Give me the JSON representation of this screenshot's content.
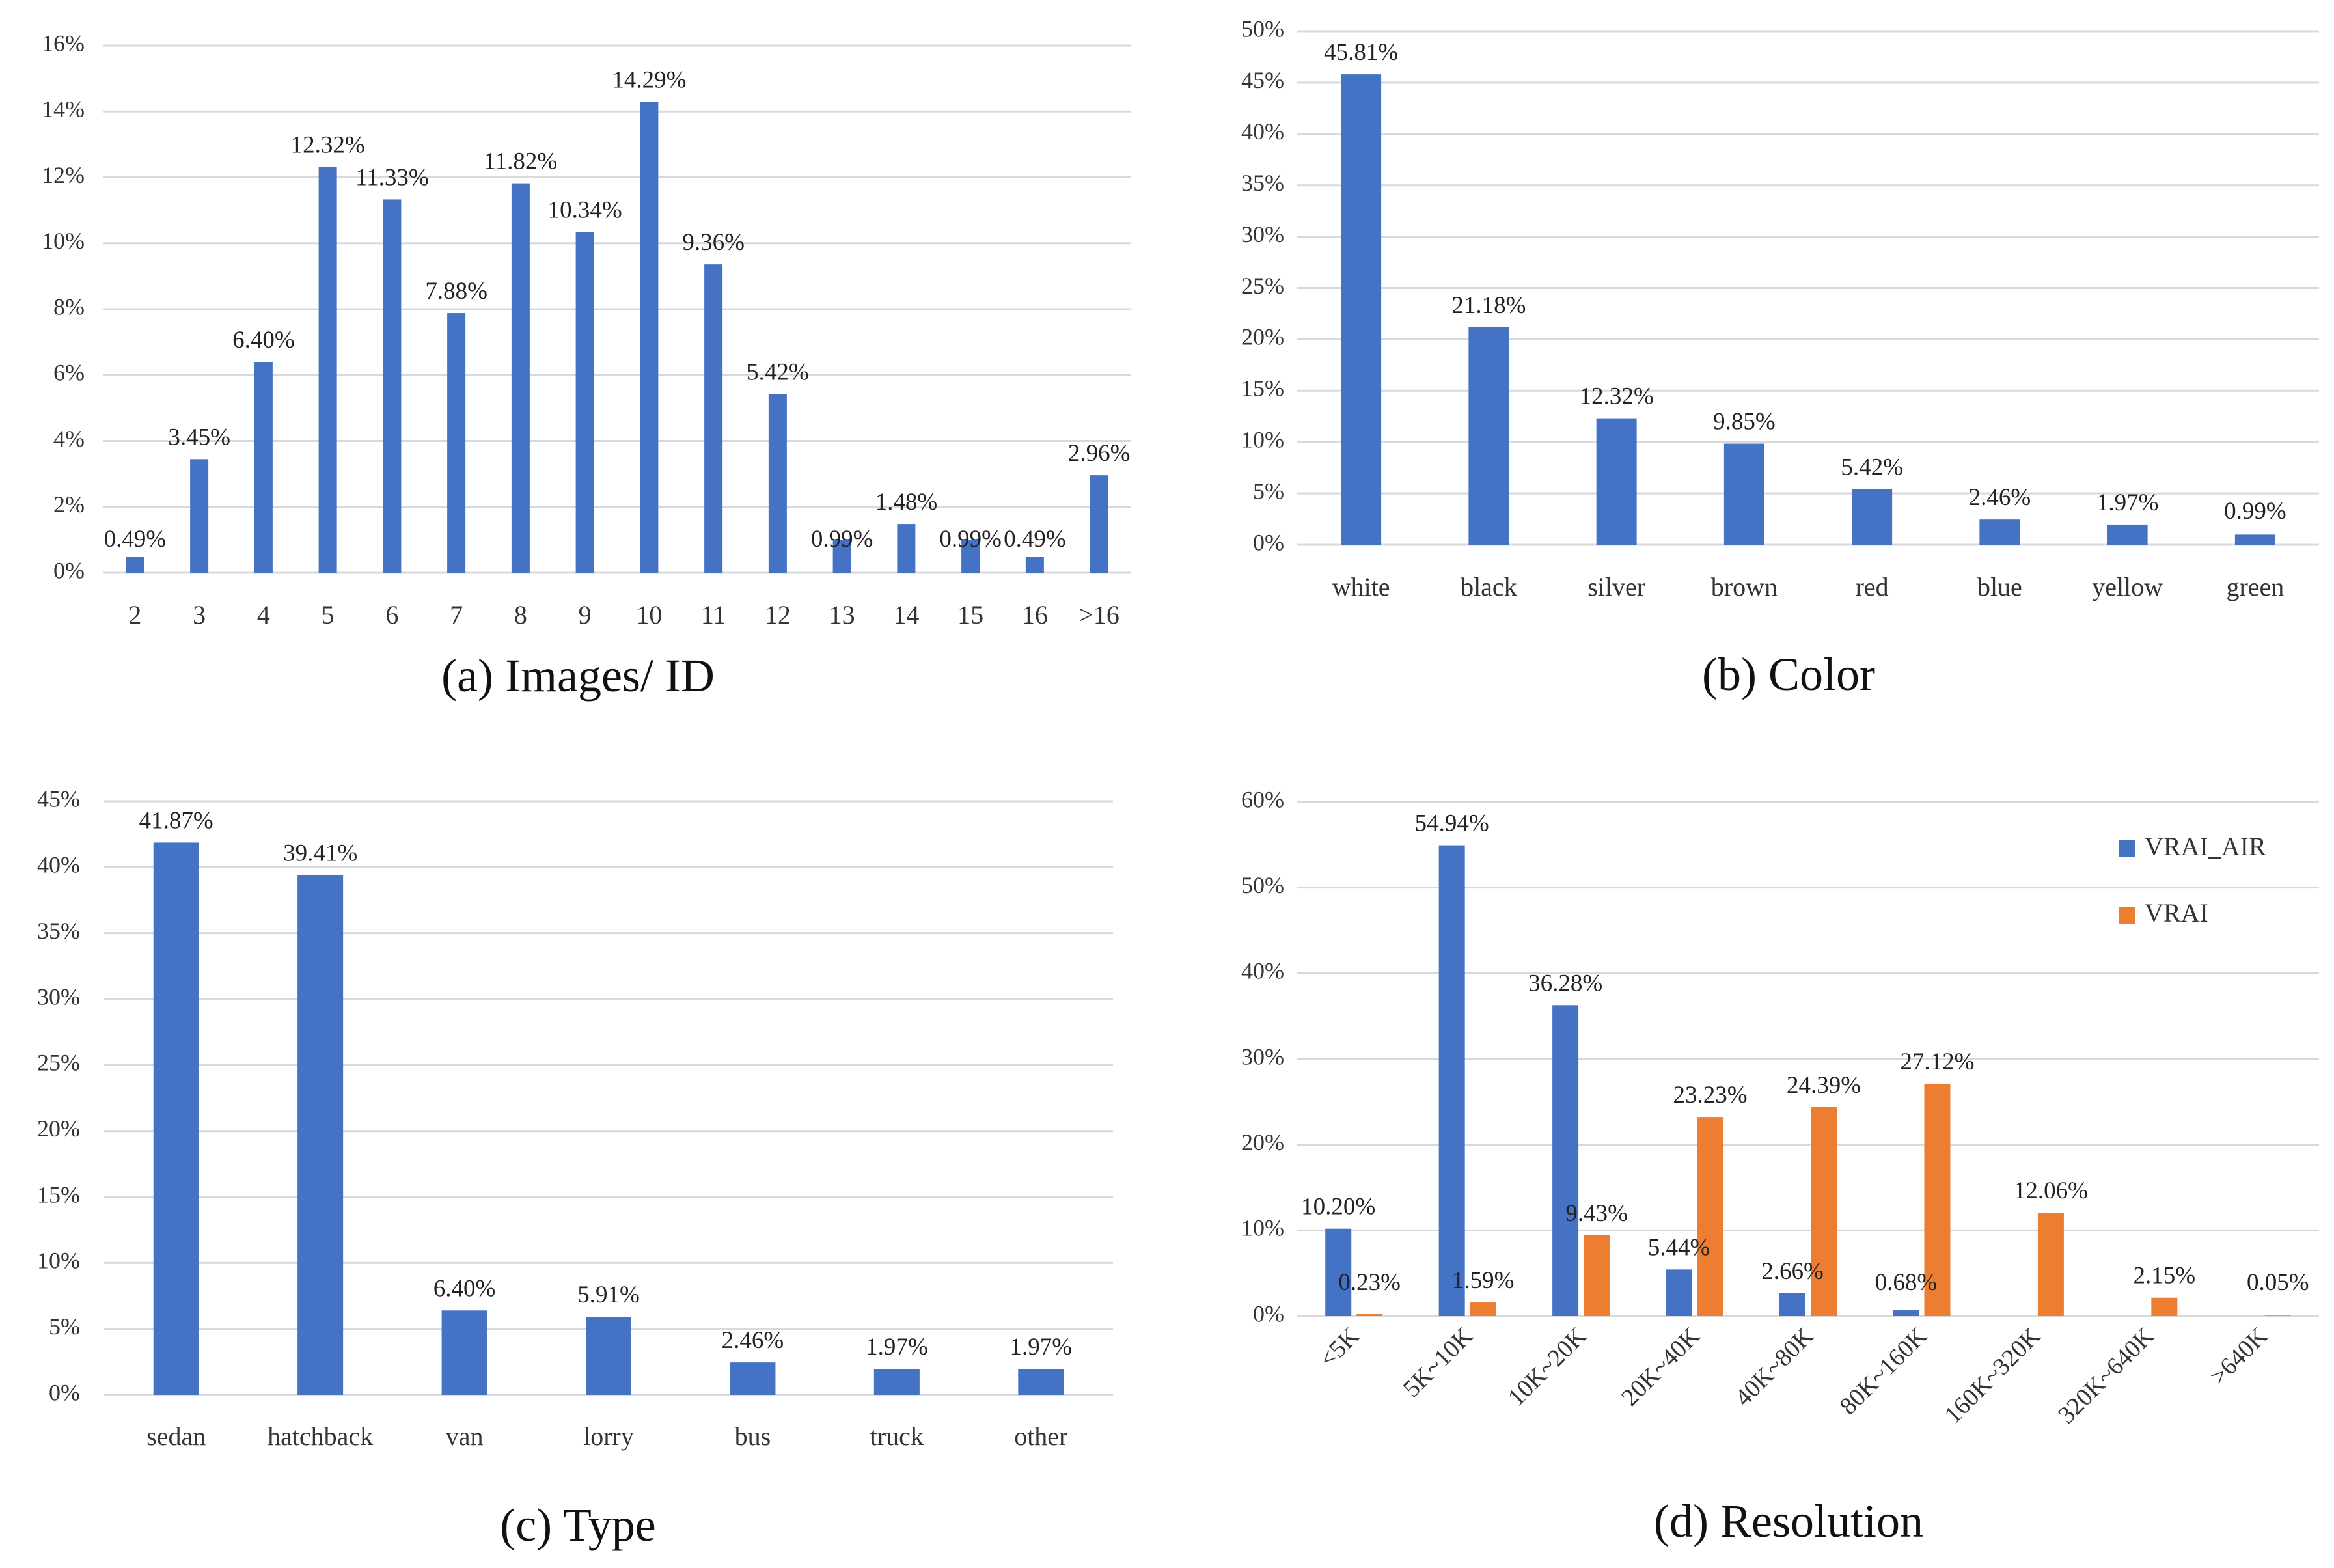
{
  "colors": {
    "vrai_air": "#4472C4",
    "vrai": "#ED7D31",
    "grid": "#D9D9D9"
  },
  "chart_data": [
    {
      "type": "bar",
      "caption": "(a) Images/ ID",
      "categories": [
        "2",
        "3",
        "4",
        "5",
        "6",
        "7",
        "8",
        "9",
        "10",
        "11",
        "12",
        "13",
        "14",
        "15",
        "16",
        ">16"
      ],
      "series": [
        {
          "values": [
            0.49,
            3.45,
            6.4,
            12.32,
            11.33,
            7.88,
            11.82,
            10.34,
            14.29,
            9.36,
            5.42,
            0.99,
            1.48,
            0.99,
            0.49,
            2.96
          ]
        }
      ],
      "data_labels": [
        "0.49%",
        "3.45%",
        "6.40%",
        "12.32%",
        "11.33%",
        "7.88%",
        "11.82%",
        "10.34%",
        "14.29%",
        "9.36%",
        "5.42%",
        "0.99%",
        "1.48%",
        "0.99%",
        "0.49%",
        "2.96%"
      ],
      "yticks": [
        "0%",
        "2%",
        "4%",
        "6%",
        "8%",
        "10%",
        "12%",
        "14%",
        "16%"
      ],
      "ylim": [
        0,
        16
      ],
      "grid": true
    },
    {
      "type": "bar",
      "caption": "(b) Color",
      "categories": [
        "white",
        "black",
        "silver",
        "brown",
        "red",
        "blue",
        "yellow",
        "green"
      ],
      "series": [
        {
          "values": [
            45.81,
            21.18,
            12.32,
            9.85,
            5.42,
            2.46,
            1.97,
            0.99
          ]
        }
      ],
      "data_labels": [
        "45.81%",
        "21.18%",
        "12.32%",
        "9.85%",
        "5.42%",
        "2.46%",
        "1.97%",
        "0.99%"
      ],
      "yticks": [
        "0%",
        "5%",
        "10%",
        "15%",
        "20%",
        "25%",
        "30%",
        "35%",
        "40%",
        "45%",
        "50%"
      ],
      "ylim": [
        0,
        50
      ],
      "grid": true
    },
    {
      "type": "bar",
      "caption": "(c) Type",
      "categories": [
        "sedan",
        "hatchback",
        "van",
        "lorry",
        "bus",
        "truck",
        "other"
      ],
      "series": [
        {
          "values": [
            41.87,
            39.41,
            6.4,
            5.91,
            2.46,
            1.97,
            1.97
          ]
        }
      ],
      "data_labels": [
        "41.87%",
        "39.41%",
        "6.40%",
        "5.91%",
        "2.46%",
        "1.97%",
        "1.97%"
      ],
      "yticks": [
        "0%",
        "5%",
        "10%",
        "15%",
        "20%",
        "25%",
        "30%",
        "35%",
        "40%",
        "45%"
      ],
      "ylim": [
        0,
        45
      ],
      "grid": true
    },
    {
      "type": "bar",
      "caption": "(d) Resolution",
      "categories": [
        "<5K",
        "5K~10K",
        "10K~20K",
        "20K~40K",
        "40K~80K",
        "80K~160K",
        "160K~320K",
        "320K~640K",
        ">640K"
      ],
      "series": [
        {
          "name": "VRAI_AIR",
          "values": [
            10.2,
            54.94,
            36.28,
            5.44,
            2.66,
            0.68,
            0,
            0,
            0
          ],
          "data_labels": [
            "10.20%",
            "54.94%",
            "36.28%",
            "5.44%",
            "2.66%",
            "0.68%",
            "",
            "",
            ""
          ]
        },
        {
          "name": "VRAI",
          "values": [
            0.23,
            1.59,
            9.43,
            23.23,
            24.39,
            27.12,
            12.06,
            2.15,
            0.05
          ],
          "data_labels": [
            "0.23%",
            "1.59%",
            "9.43%",
            "23.23%",
            "24.39%",
            "27.12%",
            "12.06%",
            "2.15%",
            "0.05%"
          ]
        }
      ],
      "yticks": [
        "0%",
        "10%",
        "20%",
        "30%",
        "40%",
        "50%",
        "60%"
      ],
      "ylim": [
        0,
        60
      ],
      "legend": "top-right",
      "grid": true
    }
  ]
}
